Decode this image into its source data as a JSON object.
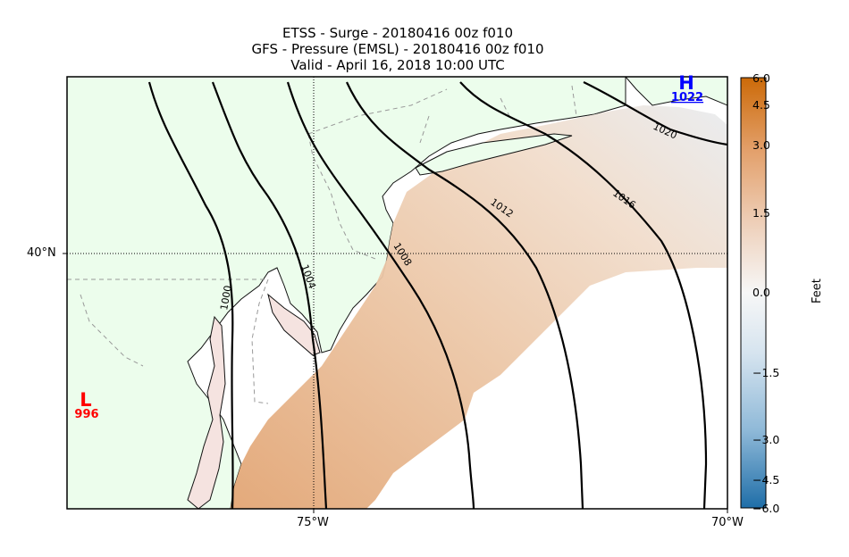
{
  "titles": {
    "line1": "ETSS - Surge - 20180416 00z f010",
    "line2": "GFS -  Pressure (EMSL) - 20180416 00z f010",
    "line3": "Valid - April 16, 2018 10:00 UTC"
  },
  "map": {
    "extent": {
      "lon": [
        -78,
        -70
      ],
      "lat": [
        37,
        42
      ]
    },
    "xticks": [
      {
        "lon": -75,
        "label": "75°W"
      },
      {
        "lon": -70,
        "label": "70°W"
      }
    ],
    "yticks": [
      {
        "lat": 40,
        "label": "40°N"
      }
    ],
    "land_color": "#ecfdec",
    "water_color": "#ffffff"
  },
  "pressure_centers": [
    {
      "type": "L",
      "value": "996",
      "color": "#ff0000"
    },
    {
      "type": "H",
      "value": "1022",
      "color": "#0000ff"
    }
  ],
  "isobar_labels": [
    "1000",
    "1004",
    "1008",
    "1012",
    "1016",
    "1020"
  ],
  "colorbar": {
    "label": "Feet",
    "min": -6.0,
    "max": 6.0,
    "ticks": [
      "6.0",
      "4.5",
      "3.0",
      "1.5",
      "0.0",
      "−1.5",
      "−3.0",
      "−4.5",
      "−6.0"
    ],
    "colors": [
      "#cc6a08",
      "#e3a06b",
      "#efd5c2",
      "#f7f7f7",
      "#d6e4ef",
      "#8fb9d8",
      "#1f6ea8"
    ]
  }
}
